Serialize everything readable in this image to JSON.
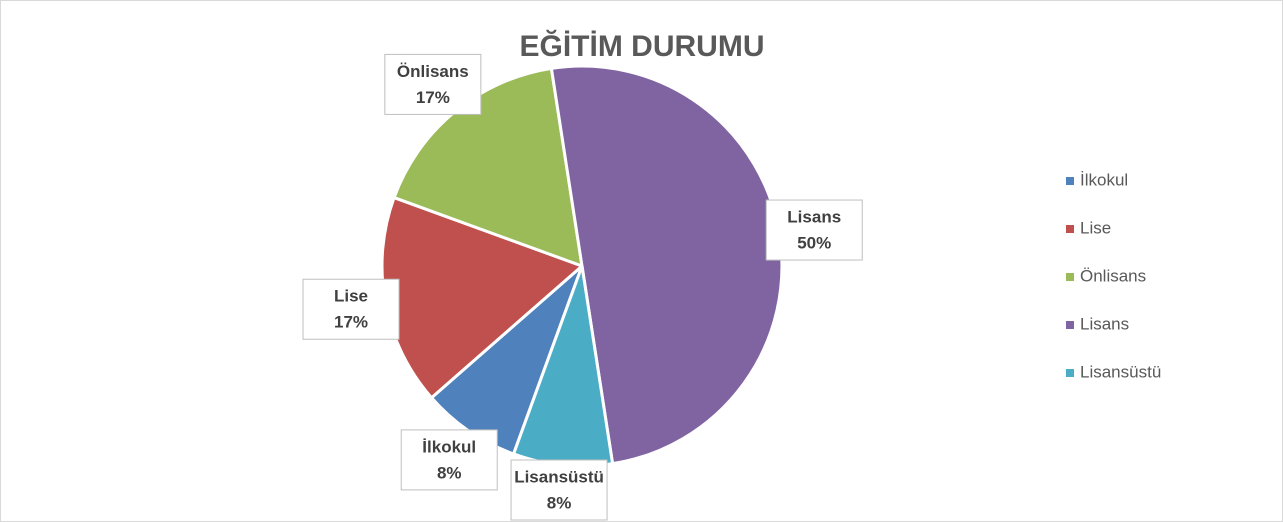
{
  "chart_data": {
    "type": "pie",
    "title": "EĞİTİM DURUMU",
    "categories": [
      "İlkokul",
      "Lise",
      "Önlisans",
      "Lisans",
      "Lisansüstü"
    ],
    "values": [
      8,
      17,
      17,
      50,
      8
    ],
    "value_labels": [
      "8%",
      "17%",
      "17%",
      "50%",
      "8%"
    ],
    "colors": [
      "#4f81bd",
      "#c0504d",
      "#9bbb59",
      "#8064a2",
      "#4bacc6"
    ],
    "start_angle": 200,
    "legend": "right"
  }
}
